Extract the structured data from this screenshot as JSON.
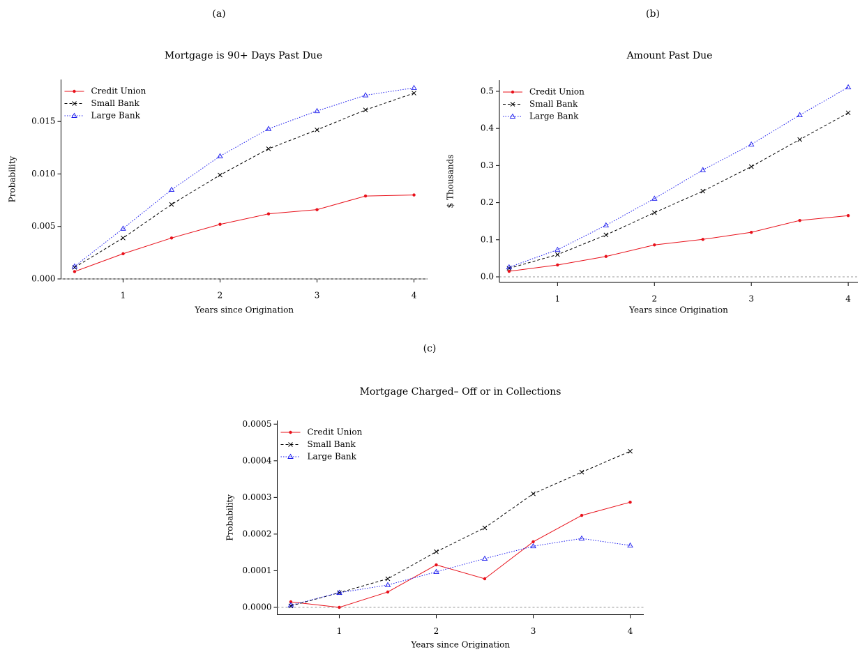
{
  "chart_data": [
    {
      "type": "line",
      "panel_label": "(a)",
      "title": "Mortgage is 90+  Days Past Due",
      "x_label": "Years since Origination",
      "y_label": "Probability",
      "x": [
        0.5,
        1,
        1.5,
        2,
        2.5,
        3,
        3.5,
        4
      ],
      "xlim": [
        0.36,
        4.14
      ],
      "xticks": [
        1,
        2,
        3,
        4
      ],
      "ylim": [
        0,
        0.019
      ],
      "yticks": [
        {
          "value": 0,
          "label": "0.000"
        },
        {
          "value": 0.005,
          "label": "0.005"
        },
        {
          "value": 0.01,
          "label": "0.010"
        },
        {
          "value": 0.015,
          "label": "0.015"
        }
      ],
      "zero_line": true,
      "series": [
        {
          "name": "Credit Union",
          "color": "#e8101a",
          "linestyle": "solid",
          "marker": "circle",
          "values": [
            0.0007,
            0.0024,
            0.0039,
            0.0052,
            0.0062,
            0.0066,
            0.0079,
            0.008
          ]
        },
        {
          "name": "Small Bank",
          "color": "#000000",
          "linestyle": "dashed",
          "marker": "x",
          "values": [
            0.0011,
            0.0039,
            0.0071,
            0.0099,
            0.0124,
            0.0142,
            0.0161,
            0.0177
          ]
        },
        {
          "name": "Large Bank",
          "color": "#1a1aee",
          "linestyle": "dotted",
          "marker": "triangle",
          "values": [
            0.0012,
            0.0048,
            0.0085,
            0.0117,
            0.0143,
            0.016,
            0.0175,
            0.0182
          ]
        }
      ]
    },
    {
      "type": "line",
      "panel_label": "(b)",
      "title": "Amount Past Due",
      "x_label": "Years since Origination",
      "y_label": "$ Thousands",
      "x": [
        0.5,
        1,
        1.5,
        2,
        2.5,
        3,
        3.5,
        4
      ],
      "xlim": [
        0.4,
        4.1
      ],
      "xticks": [
        1,
        2,
        3,
        4
      ],
      "ylim": [
        -0.015,
        0.53
      ],
      "yticks": [
        {
          "value": 0,
          "label": "0.0"
        },
        0.1,
        0.2,
        0.3,
        0.4,
        0.5
      ],
      "zero_line": true,
      "series": [
        {
          "name": "Credit Union",
          "color": "#e8101a",
          "linestyle": "solid",
          "marker": "circle",
          "values": [
            0.015,
            0.032,
            0.055,
            0.086,
            0.101,
            0.12,
            0.152,
            0.165
          ]
        },
        {
          "name": "Small Bank",
          "color": "#000000",
          "linestyle": "dashed",
          "marker": "x",
          "values": [
            0.023,
            0.06,
            0.113,
            0.173,
            0.231,
            0.297,
            0.37,
            0.442
          ]
        },
        {
          "name": "Large Bank",
          "color": "#1a1aee",
          "linestyle": "dotted",
          "marker": "triangle",
          "values": [
            0.026,
            0.073,
            0.139,
            0.211,
            0.288,
            0.357,
            0.436,
            0.511
          ]
        }
      ]
    },
    {
      "type": "line",
      "panel_label": "(c)",
      "title": "Mortgage Charged– Off or in Collections",
      "x_label": "Years since Origination",
      "y_label": "Probability",
      "x": [
        0.5,
        1,
        1.5,
        2,
        2.5,
        3,
        3.5,
        4
      ],
      "xlim": [
        0.36,
        4.14
      ],
      "xticks": [
        1,
        2,
        3,
        4
      ],
      "ylim": [
        -2e-05,
        0.00051
      ],
      "yticks": [
        {
          "value": 0,
          "label": "0.0000"
        },
        {
          "value": 0.0001,
          "label": "0.0001"
        },
        {
          "value": 0.0002,
          "label": "0.0002"
        },
        {
          "value": 0.0003,
          "label": "0.0003"
        },
        {
          "value": 0.0004,
          "label": "0.0004"
        },
        {
          "value": 0.0005,
          "label": "0.0005"
        }
      ],
      "zero_line": true,
      "series": [
        {
          "name": "Credit Union",
          "color": "#e8101a",
          "linestyle": "solid",
          "marker": "circle",
          "values": [
            1.5e-05,
            0.0,
            4.2e-05,
            0.000116,
            7.8e-05,
            0.000179,
            0.000251,
            0.000287
          ]
        },
        {
          "name": "Small Bank",
          "color": "#000000",
          "linestyle": "dashed",
          "marker": "x",
          "values": [
            4e-06,
            4e-05,
            7.8e-05,
            0.000152,
            0.000217,
            0.00031,
            0.000369,
            0.000426
          ]
        },
        {
          "name": "Large Bank",
          "color": "#1a1aee",
          "linestyle": "dotted",
          "marker": "triangle",
          "values": [
            6e-06,
            4e-05,
            6.1e-05,
            9.7e-05,
            0.000133,
            0.000167,
            0.000188,
            0.000169
          ]
        }
      ]
    }
  ]
}
